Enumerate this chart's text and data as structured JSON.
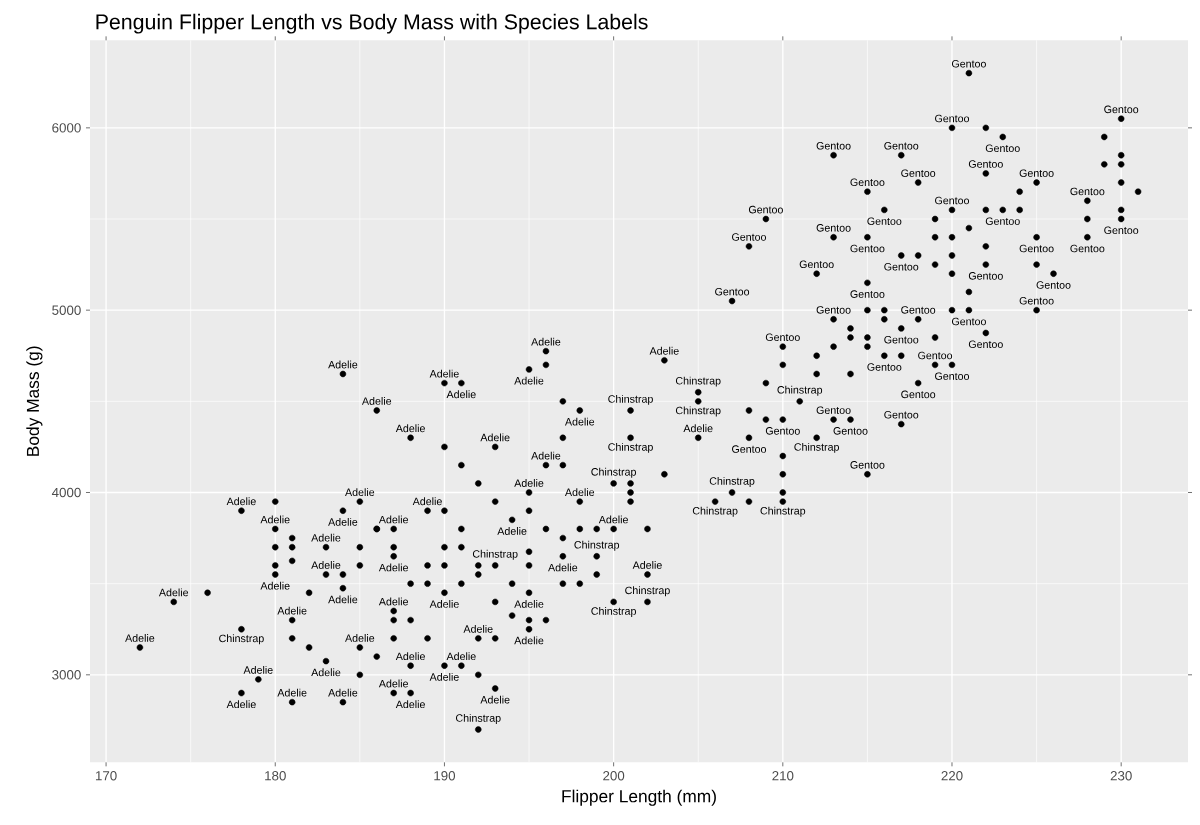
{
  "chart_data": {
    "type": "scatter",
    "title": "Penguin Flipper Length vs Body Mass with Species Labels",
    "xlabel": "Flipper Length (mm)",
    "ylabel": "Body Mass (g)",
    "xlim": [
      169.05,
      233.95
    ],
    "ylim": [
      2520,
      6480
    ],
    "xticks": [
      170,
      180,
      190,
      200,
      210,
      220,
      230
    ],
    "yticks": [
      3000,
      4000,
      5000,
      6000
    ],
    "grid": true,
    "marker": "circle",
    "series": [
      {
        "name": "Adelie",
        "color": "#000000",
        "x": [
          172,
          174,
          176,
          178,
          178,
          179,
          180,
          180,
          180,
          180,
          180,
          181,
          181,
          181,
          181,
          181,
          182,
          182,
          183,
          183,
          184,
          184,
          184,
          184,
          185,
          185,
          185,
          185,
          186,
          186,
          186,
          187,
          187,
          187,
          187,
          188,
          188,
          188,
          188,
          189,
          189,
          189,
          190,
          190,
          190,
          190,
          190,
          191,
          191,
          191,
          191,
          192,
          192,
          192,
          193,
          193,
          193,
          194,
          194,
          195,
          195,
          195,
          195,
          196,
          196,
          196,
          196,
          197,
          197,
          198,
          198,
          199,
          200,
          201,
          202,
          203,
          186,
          188,
          192,
          184,
          185,
          187,
          189,
          191,
          194,
          183,
          190,
          195,
          197,
          205,
          210
        ],
        "values": [
          3150,
          3400,
          3450,
          2900,
          3900,
          2975,
          3550,
          3600,
          3700,
          3800,
          3950,
          2850,
          3300,
          3625,
          3700,
          3750,
          3150,
          3450,
          3075,
          3550,
          2850,
          3475,
          3900,
          4650,
          3000,
          3150,
          3700,
          3950,
          3100,
          3800,
          4450,
          2900,
          3350,
          3650,
          3800,
          2900,
          3050,
          3300,
          4300,
          3200,
          3600,
          3900,
          3050,
          3450,
          3900,
          4250,
          4600,
          3050,
          3800,
          4150,
          4600,
          3000,
          3200,
          4050,
          2925,
          3400,
          4250,
          3325,
          3850,
          3250,
          3450,
          4000,
          4675,
          3300,
          4150,
          4700,
          4775,
          3650,
          4500,
          3950,
          4450,
          3550,
          3800,
          3950,
          3550,
          4725,
          3800,
          3500,
          3600,
          3550,
          3600,
          3700,
          3500,
          3700,
          3500,
          3700,
          3600,
          3900,
          4300,
          4300,
          4000
        ]
      },
      {
        "name": "Chinstrap",
        "color": "#000000",
        "x": [
          192,
          178,
          181,
          201,
          205,
          205,
          201,
          206,
          210,
          207,
          208,
          210,
          212,
          211,
          202,
          199,
          200,
          195,
          198,
          197,
          196,
          200,
          201,
          197,
          193,
          195,
          187,
          190,
          192,
          193,
          198,
          201,
          195,
          202,
          203,
          191,
          187,
          197,
          199,
          193
        ],
        "values": [
          2700,
          3250,
          3200,
          4300,
          4550,
          4500,
          4450,
          3950,
          3950,
          4000,
          3950,
          4100,
          4300,
          4500,
          3400,
          3650,
          3400,
          3300,
          3500,
          3750,
          3800,
          4050,
          4050,
          4150,
          3950,
          3675,
          3300,
          3700,
          3550,
          3600,
          3800,
          4000,
          3600,
          3800,
          4100,
          3500,
          3200,
          3500,
          3800,
          3200
        ]
      },
      {
        "name": "Gentoo",
        "color": "#000000",
        "x": [
          221,
          220,
          222,
          223,
          229,
          230,
          213,
          217,
          230,
          229,
          230,
          218,
          222,
          225,
          215,
          224,
          228,
          230,
          231,
          209,
          216,
          219,
          220,
          222,
          223,
          224,
          228,
          230,
          230,
          208,
          213,
          215,
          217,
          218,
          219,
          220,
          221,
          222,
          225,
          228,
          212,
          215,
          216,
          219,
          220,
          221,
          222,
          225,
          226,
          207,
          213,
          214,
          215,
          216,
          217,
          218,
          220,
          221,
          225,
          210,
          212,
          213,
          214,
          215,
          216,
          217,
          219,
          222,
          209,
          210,
          212,
          214,
          218,
          219,
          220,
          208,
          210,
          213,
          214,
          217,
          209,
          215,
          208,
          210,
          220,
          215
        ],
        "values": [
          6300,
          6000,
          6000,
          5950,
          5950,
          6050,
          5850,
          5850,
          5850,
          5800,
          5800,
          5700,
          5750,
          5700,
          5650,
          5650,
          5600,
          5700,
          5650,
          5500,
          5550,
          5500,
          5550,
          5550,
          5550,
          5550,
          5500,
          5550,
          5500,
          5350,
          5400,
          5400,
          5300,
          5300,
          5400,
          5400,
          5450,
          5350,
          5400,
          5400,
          5200,
          5150,
          5000,
          5250,
          5200,
          5100,
          5250,
          5250,
          5200,
          5050,
          4950,
          4900,
          5000,
          4950,
          4900,
          4950,
          5000,
          5000,
          5000,
          4800,
          4750,
          4800,
          4850,
          4850,
          4750,
          4750,
          4850,
          4875,
          4600,
          4700,
          4650,
          4650,
          4600,
          4700,
          4700,
          4450,
          4400,
          4400,
          4400,
          4375,
          4400,
          4800,
          4300,
          4200,
          5300,
          4100
        ]
      }
    ]
  }
}
